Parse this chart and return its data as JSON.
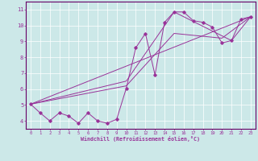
{
  "xlabel": "Windchill (Refroidissement éolien,°C)",
  "xlim": [
    -0.5,
    23.5
  ],
  "ylim": [
    3.5,
    11.5
  ],
  "xticks": [
    0,
    1,
    2,
    3,
    4,
    5,
    6,
    7,
    8,
    9,
    10,
    11,
    12,
    13,
    14,
    15,
    16,
    17,
    18,
    19,
    20,
    21,
    22,
    23
  ],
  "yticks": [
    4,
    5,
    6,
    7,
    8,
    9,
    10,
    11
  ],
  "bg_color": "#cce8e8",
  "line_color": "#993399",
  "line1_x": [
    0,
    1,
    2,
    3,
    4,
    5,
    6,
    7,
    8,
    9,
    10,
    11,
    12,
    13,
    14,
    15,
    16,
    17,
    18,
    19,
    20,
    21,
    22,
    23
  ],
  "line1_y": [
    5.05,
    4.5,
    4.0,
    4.5,
    4.3,
    3.85,
    4.5,
    4.0,
    3.85,
    4.1,
    6.05,
    8.6,
    9.5,
    6.9,
    10.2,
    10.85,
    10.85,
    10.3,
    10.2,
    9.9,
    8.9,
    9.05,
    10.4,
    10.55
  ],
  "line2_x": [
    0,
    23
  ],
  "line2_y": [
    5.05,
    10.55
  ],
  "line3_x": [
    0,
    10,
    15,
    21,
    23
  ],
  "line3_y": [
    5.05,
    6.5,
    10.85,
    9.05,
    10.55
  ],
  "line4_x": [
    0,
    10,
    15,
    20,
    23
  ],
  "line4_y": [
    5.05,
    6.2,
    9.5,
    9.2,
    10.55
  ]
}
